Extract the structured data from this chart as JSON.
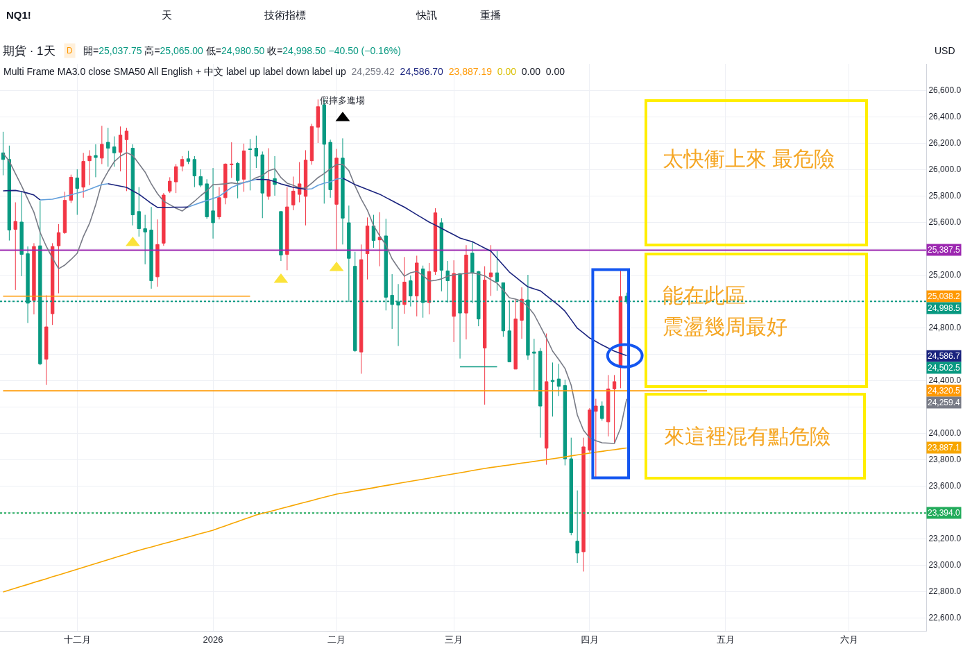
{
  "chart_data": {
    "type": "candlestick",
    "title": "期貨 · 1天",
    "categories": [
      null,
      null,
      null,
      null,
      null,
      null,
      null,
      null,
      null,
      null,
      null,
      null,
      "十二月",
      null,
      null,
      null,
      null,
      null,
      null,
      null,
      null,
      null,
      null,
      null,
      null,
      null,
      null,
      null,
      null,
      null,
      null,
      null,
      null,
      null,
      "2026",
      null,
      null,
      null,
      null,
      null,
      null,
      null,
      null,
      null,
      null,
      null,
      null,
      null,
      null,
      null,
      null,
      null,
      null,
      null,
      "二月",
      null,
      null,
      null,
      null,
      null,
      null,
      null,
      null,
      null,
      null,
      null,
      null,
      null,
      null,
      null,
      null,
      null,
      null,
      "三月",
      null,
      null,
      null,
      null,
      null,
      null,
      null,
      null,
      null,
      null,
      null,
      null,
      null,
      null,
      null,
      null,
      null,
      null,
      null,
      null,
      null,
      "四月",
      null,
      null,
      null,
      null,
      null,
      null,
      null,
      null,
      null,
      null,
      null,
      null,
      null,
      null,
      null,
      null,
      null,
      null,
      null,
      null,
      null,
      "五月",
      null,
      null,
      null,
      null,
      null,
      null,
      null,
      null,
      null,
      null,
      null,
      null,
      null,
      null,
      null,
      null,
      null,
      null,
      null,
      "六月",
      null,
      null,
      null,
      null,
      null,
      null,
      null,
      null,
      null,
      null,
      null,
      null
    ],
    "ohlc": [
      [
        26125,
        26285,
        25955,
        26075
      ],
      [
        26075,
        26180,
        25460,
        25540
      ],
      [
        25545,
        25750,
        25085,
        25605
      ],
      [
        25600,
        25830,
        25190,
        25355
      ],
      [
        25360,
        25415,
        24835,
        24985
      ],
      [
        25005,
        25440,
        24900,
        25415
      ],
      [
        25420,
        25760,
        24515,
        24525
      ],
      [
        24560,
        25045,
        24365,
        24805
      ],
      [
        24905,
        25440,
        24820,
        25415
      ],
      [
        25420,
        25585,
        25060,
        25520
      ],
      [
        25520,
        25830,
        25510,
        25765
      ],
      [
        25765,
        25960,
        25745,
        25940
      ],
      [
        25935,
        26000,
        25655,
        25855
      ],
      [
        25865,
        26125,
        25785,
        26060
      ],
      [
        26065,
        26145,
        25880,
        26100
      ],
      [
        26105,
        26190,
        25940,
        26090
      ],
      [
        26085,
        26330,
        26040,
        26190
      ],
      [
        26205,
        26315,
        26020,
        26160
      ],
      [
        26170,
        26250,
        26020,
        26125
      ],
      [
        26130,
        26325,
        25985,
        26260
      ],
      [
        26225,
        26315,
        25835,
        26290
      ],
      [
        26160,
        26190,
        25575,
        25655
      ],
      [
        25680,
        25865,
        25490,
        25550
      ],
      [
        25550,
        25655,
        25280,
        25525
      ],
      [
        25540,
        25715,
        25095,
        25155
      ],
      [
        25185,
        25620,
        25110,
        25430
      ],
      [
        25440,
        25820,
        25420,
        25805
      ],
      [
        25835,
        25940,
        25820,
        25910
      ],
      [
        25905,
        26040,
        25820,
        26020
      ],
      [
        26025,
        26100,
        25985,
        26075
      ],
      [
        26080,
        26140,
        26040,
        26060
      ],
      [
        26075,
        26100,
        25865,
        25950
      ],
      [
        25945,
        26000,
        25865,
        25880
      ],
      [
        25890,
        25925,
        25625,
        25640
      ],
      [
        25685,
        26010,
        25475,
        25595
      ],
      [
        25640,
        25865,
        25620,
        25785
      ],
      [
        25785,
        26045,
        25735,
        26040
      ],
      [
        26035,
        26205,
        25935,
        26040
      ],
      [
        26045,
        26055,
        25780,
        25915
      ],
      [
        25925,
        26195,
        25830,
        26140
      ],
      [
        26155,
        26230,
        25840,
        26150
      ],
      [
        26160,
        26255,
        26010,
        26100
      ],
      [
        26110,
        26135,
        25630,
        25820
      ],
      [
        25795,
        26160,
        25770,
        25915
      ],
      [
        25930,
        26100,
        25800,
        25885
      ],
      [
        25680,
        25680,
        25305,
        25350
      ],
      [
        25355,
        25865,
        25235,
        25715
      ],
      [
        25730,
        25945,
        25690,
        25835
      ],
      [
        25810,
        26055,
        25750,
        25890
      ],
      [
        25795,
        26145,
        25575,
        26070
      ],
      [
        26065,
        26345,
        26035,
        26325
      ],
      [
        26320,
        26530,
        26200,
        26475
      ],
      [
        26490,
        26530,
        25740,
        26190
      ],
      [
        26205,
        26225,
        25785,
        25845
      ],
      [
        25735,
        26155,
        25390,
        26085
      ],
      [
        26085,
        26235,
        25430,
        25630
      ],
      [
        25595,
        25725,
        24995,
        25325
      ],
      [
        25265,
        25375,
        24615,
        24625
      ],
      [
        24615,
        25430,
        24450,
        25315
      ],
      [
        25360,
        25635,
        25165,
        25570
      ],
      [
        25570,
        25655,
        25405,
        25460
      ],
      [
        25465,
        25675,
        25265,
        25485
      ],
      [
        25495,
        25625,
        24930,
        25030
      ],
      [
        25045,
        25205,
        24790,
        24975
      ],
      [
        24995,
        25130,
        24660,
        24970
      ],
      [
        24975,
        25335,
        24905,
        25145
      ],
      [
        25155,
        25195,
        24960,
        25040
      ],
      [
        25040,
        25345,
        24885,
        25290
      ],
      [
        25245,
        25270,
        24875,
        24990
      ],
      [
        24990,
        25290,
        24900,
        25225
      ],
      [
        25225,
        25705,
        25200,
        25670
      ],
      [
        25595,
        25630,
        25075,
        25235
      ],
      [
        25230,
        25305,
        24990,
        25155
      ],
      [
        24885,
        25310,
        24690,
        25210
      ],
      [
        25210,
        25210,
        24565,
        24910
      ],
      [
        24910,
        25425,
        24710,
        25350
      ],
      [
        25365,
        25450,
        24985,
        25215
      ],
      [
        25225,
        25230,
        24810,
        24865
      ],
      [
        24645,
        25265,
        24215,
        25160
      ],
      [
        25185,
        25425,
        25040,
        25215
      ],
      [
        25215,
        25380,
        25080,
        25150
      ],
      [
        25140,
        25140,
        24730,
        24775
      ],
      [
        24775,
        25005,
        24540,
        24540
      ],
      [
        24485,
        25015,
        24485,
        24865
      ],
      [
        24855,
        25105,
        24715,
        25015
      ],
      [
        25010,
        25200,
        24555,
        24590
      ],
      [
        24615,
        24715,
        24320,
        24605
      ],
      [
        24620,
        24645,
        23965,
        24205
      ],
      [
        23885,
        24755,
        23760,
        24390
      ],
      [
        24400,
        24535,
        24125,
        24390
      ],
      [
        24410,
        24525,
        24280,
        24355
      ],
      [
        24360,
        24405,
        23755,
        23805
      ],
      [
        23805,
        23965,
        23225,
        23245
      ],
      [
        23180,
        23565,
        23015,
        23090
      ],
      [
        23100,
        23965,
        22950,
        23895
      ],
      [
        23870,
        24190,
        23855,
        24175
      ],
      [
        24165,
        24260,
        23660,
        24205
      ],
      [
        24205,
        24240,
        24095,
        24110
      ],
      [
        24085,
        24440,
        23975,
        24335
      ],
      [
        24335,
        24440,
        23925,
        24390
      ],
      [
        24505,
        25240,
        24340,
        25035
      ],
      [
        25037.75,
        25065,
        24980.5,
        24998.5
      ],
      null,
      null,
      null,
      null,
      null,
      null,
      null,
      null,
      null,
      null,
      null,
      null,
      null,
      null,
      null,
      null,
      null,
      null,
      null,
      null,
      null,
      null,
      null,
      null,
      null,
      null,
      null,
      null,
      null,
      null,
      null,
      null,
      null,
      null,
      null,
      null,
      null,
      null,
      null,
      null,
      null,
      null,
      null,
      null,
      null,
      null,
      null,
      null
    ],
    "colors": [
      "#089981",
      "#089981",
      "#f23645",
      "#089981",
      "#089981",
      "#f23645",
      "#089981",
      "#f23645",
      "#f23645",
      "#f23645",
      "#f23645",
      "#f23645",
      "#089981",
      "#f23645",
      "#f23645",
      "#089981",
      "#f23645",
      "#089981",
      "#089981",
      "#f23645",
      "#f23645",
      "#089981",
      "#089981",
      "#089981",
      "#089981",
      "#f23645",
      "#f23645",
      "#f23645",
      "#f23645",
      "#f23645",
      "#089981",
      "#089981",
      "#089981",
      "#089981",
      "#089981",
      "#f23645",
      "#f23645",
      "#f23645",
      "#089981",
      "#f23645",
      "#089981",
      "#089981",
      "#089981",
      "#f23645",
      "#089981",
      "#089981",
      "#f23645",
      "#f23645",
      "#f23645",
      "#f23645",
      "#f23645",
      "#f23645",
      "#089981",
      "#089981",
      "#f23645",
      "#089981",
      "#089981",
      "#089981",
      "#f23645",
      "#f23645",
      "#089981",
      "#f23645",
      "#089981",
      "#089981",
      "#089981",
      "#f23645",
      "#089981",
      "#f23645",
      "#089981",
      "#f23645",
      "#f23645",
      "#089981",
      "#089981",
      "#f23645",
      "#089981",
      "#f23645",
      "#089981",
      "#089981",
      "#f23645",
      "#f23645",
      "#089981",
      "#089981",
      "#089981",
      "#f23645",
      "#f23645",
      "#089981",
      "#089981",
      "#089981",
      "#f23645",
      "#089981",
      "#089981",
      "#089981",
      "#089981",
      "#089981",
      "#f23645",
      "#f23645",
      "#f23645",
      "#089981",
      "#f23645",
      "#f23645",
      "#f23645",
      "#089981",
      null,
      null,
      null,
      null,
      null,
      null,
      null,
      null,
      null,
      null,
      null,
      null,
      null,
      null,
      null,
      null,
      null,
      null,
      null,
      null,
      null,
      null,
      null,
      null,
      null,
      null,
      null,
      null,
      null,
      null,
      null,
      null,
      null,
      null,
      null,
      null,
      null,
      null,
      null,
      null,
      null,
      null,
      null,
      null,
      null,
      null,
      null,
      null
    ],
    "series": [
      {
        "type": "line",
        "color": "#787b86",
        "values": [
          26121,
          26063,
          25968,
          25874,
          25774,
          25674,
          25521,
          25416,
          25326,
          25247,
          25274,
          25316,
          25363,
          25490,
          25590,
          25732,
          25900,
          25984,
          26058,
          26100,
          26126,
          26105,
          26042,
          25979,
          25890,
          25816,
          25758,
          25732,
          25705,
          25684,
          25721,
          25758,
          25800,
          25837,
          25884,
          25887,
          25890,
          25898,
          25890,
          25900,
          25911,
          25937,
          25953,
          25990,
          26004,
          25937,
          25895,
          25879,
          25858,
          25858,
          25895,
          25937,
          25968,
          26005,
          26037,
          26038,
          25990,
          25874,
          25774,
          25690,
          25574,
          25495,
          25426,
          25321,
          25253,
          25190,
          25216,
          25226,
          25196,
          25153,
          25158,
          25169,
          25190,
          25200,
          25205,
          25211,
          25215,
          25205,
          25192,
          25163,
          25137,
          25084,
          25026,
          25016,
          25000,
          24958,
          24900,
          24811,
          24721,
          24621,
          24558,
          24490,
          24363,
          24137,
          24021,
          23963,
          23942,
          23926,
          23924,
          23921,
          24037,
          24259.4,
          null,
          null,
          null,
          null,
          null,
          null,
          null,
          null,
          null,
          null,
          null,
          null,
          null,
          null,
          null,
          null,
          null,
          null,
          null,
          null,
          null,
          null,
          null,
          null,
          null,
          null,
          null,
          null,
          null,
          null,
          null,
          null,
          null,
          null,
          null,
          null,
          null,
          null,
          null,
          null,
          null,
          null,
          null,
          null,
          null,
          null,
          null,
          null
        ]
      },
      {
        "type": "line",
        "color": "#64a0dc",
        "values": [
          null,
          null,
          null,
          null,
          null,
          null,
          25768,
          25771,
          25774,
          25785,
          25795,
          25807,
          25820,
          25832,
          25849,
          25867,
          25884,
          25891,
          null,
          null,
          null,
          null,
          null,
          null,
          null,
          null,
          null,
          null,
          null,
          null,
          25714,
          25732,
          25748,
          25763,
          25779,
          25795,
          25829,
          25863,
          25882,
          25900,
          25912,
          25924,
          null,
          null,
          null,
          null,
          null,
          null,
          null,
          25849,
          25853,
          25879,
          25895,
          25905,
          25926,
          25933,
          null,
          null,
          null,
          null,
          null,
          null,
          null,
          null,
          null,
          null,
          null,
          null,
          null,
          null,
          null,
          null,
          null,
          null,
          null,
          null,
          null,
          null,
          null,
          null,
          null,
          null,
          null,
          null,
          null,
          null,
          null,
          null,
          null,
          null,
          null,
          null,
          null,
          null,
          null,
          null,
          null,
          null,
          null,
          null,
          null,
          null,
          null,
          null,
          null,
          null,
          null,
          null,
          null,
          null,
          null,
          null,
          null,
          null,
          null,
          null,
          null,
          null,
          null,
          null,
          null,
          null,
          null,
          null,
          null,
          null,
          null,
          null,
          null,
          null,
          null,
          null,
          null,
          null,
          null,
          null,
          null,
          null,
          null,
          null,
          null,
          null,
          null,
          null,
          null,
          null,
          null,
          null,
          null,
          null
        ]
      },
      {
        "type": "line",
        "color": "#1a237e",
        "values": [
          25837,
          25839,
          25840,
          25832,
          25819,
          25805,
          25768,
          null,
          null,
          null,
          null,
          null,
          null,
          null,
          null,
          null,
          null,
          25891,
          25882,
          25872,
          25863,
          25837,
          25811,
          25777,
          25742,
          25711,
          25712,
          25712,
          25713,
          25713,
          25714,
          null,
          null,
          null,
          null,
          null,
          null,
          null,
          null,
          null,
          null,
          25924,
          25923,
          25921,
          25906,
          25890,
          25877,
          25863,
          25856,
          25849,
          null,
          null,
          null,
          null,
          null,
          25933,
          25909,
          25884,
          25866,
          25848,
          25829,
          25811,
          25786,
          25762,
          25737,
          25713,
          25685,
          25656,
          25628,
          25600,
          25577,
          25553,
          25528,
          25504,
          25479,
          25465,
          25451,
          25427,
          25403,
          25379,
          25326,
          25274,
          25221,
          25184,
          25146,
          25109,
          25094,
          25079,
          25042,
          25005,
          24968,
          24924,
          24860,
          24795,
          24758,
          24721,
          24695,
          24668,
          24645,
          24621,
          24604,
          24586.7,
          null,
          null,
          null,
          null,
          null,
          null,
          null,
          null,
          null,
          null,
          null,
          null,
          null,
          null,
          null,
          null,
          null,
          null,
          null,
          null,
          null,
          null,
          null,
          null,
          null,
          null,
          null,
          null,
          null,
          null,
          null,
          null,
          null,
          null,
          null,
          null,
          null,
          null,
          null,
          null,
          null,
          null,
          null,
          null,
          null,
          null,
          null,
          null
        ]
      },
      {
        "type": "line",
        "color": "#f7a600",
        "values": [
          22795,
          22809,
          22824,
          22838,
          22852,
          22867,
          22881,
          22895,
          22910,
          22924,
          22938,
          22953,
          22967,
          22982,
          22996,
          23010,
          23025,
          23039,
          23054,
          23068,
          23082,
          23097,
          23111,
          23124,
          23136,
          23149,
          23162,
          23174,
          23187,
          23200,
          23212,
          23225,
          23238,
          23250,
          23263,
          23280,
          23296,
          23313,
          23329,
          23346,
          23362,
          23379,
          23391,
          23403,
          23415,
          23428,
          23440,
          23452,
          23464,
          23476,
          23488,
          23501,
          23513,
          23525,
          23537,
          23545,
          23553,
          23561,
          23569,
          23577,
          23585,
          23594,
          23602,
          23610,
          23618,
          23626,
          23634,
          23642,
          23650,
          23658,
          23667,
          23675,
          23683,
          23691,
          23699,
          23707,
          23716,
          23724,
          23732,
          23739,
          23745,
          23752,
          23758,
          23765,
          23772,
          23778,
          23785,
          23792,
          23798,
          23805,
          23812,
          23819,
          23827,
          23834,
          23841,
          23848,
          23855,
          23861,
          23868,
          23874,
          23881,
          23887.1,
          null,
          null,
          null,
          null,
          null,
          null,
          null,
          null,
          null,
          null,
          null,
          null,
          null,
          null,
          null,
          null,
          null,
          null,
          null,
          null,
          null,
          null,
          null,
          null,
          null,
          null,
          null,
          null,
          null,
          null,
          null,
          null,
          null,
          null,
          null,
          null,
          null,
          null,
          null,
          null,
          null,
          null,
          null,
          null,
          null,
          null,
          null,
          null
        ]
      },
      {
        "type": "line",
        "color": "#ff9800",
        "values": [
          25038.2,
          25038.2,
          25038.2,
          25038.2,
          25038.2,
          25038.2,
          25038.2,
          25038.2,
          25038.2,
          25038.2,
          25038.2,
          25038.2,
          25038.2,
          25038.2,
          25038.2,
          25038.2,
          25038.2,
          25038.2,
          25038.2,
          25038.2,
          25038.2,
          25038.2,
          25038.2,
          25038.2,
          25038.2,
          25038.2,
          25038.2,
          25038.2,
          25038.2,
          25038.2,
          25038.2,
          25038.2,
          25038.2,
          25038.2,
          25038.2,
          25038.2,
          25038.2,
          25038.2,
          25038.2,
          25038.2,
          25038.2,
          null,
          null,
          null,
          null,
          null,
          null,
          null,
          null,
          null,
          null,
          null,
          null,
          null,
          null,
          null,
          null,
          null,
          null,
          null,
          null,
          null,
          null,
          null,
          null,
          null,
          null,
          null,
          null,
          null,
          null,
          null,
          null,
          null,
          null,
          null,
          null,
          null,
          null,
          null,
          null,
          null,
          null,
          null,
          null,
          null,
          null,
          null,
          null,
          null,
          null,
          null,
          null,
          null,
          null,
          null,
          null,
          null,
          null,
          null,
          null,
          null,
          null,
          null,
          null,
          null,
          null,
          null,
          null,
          null,
          null,
          null,
          null,
          null,
          null,
          null,
          null,
          null,
          null,
          null,
          null,
          null,
          null,
          null,
          null,
          null,
          null,
          null,
          null,
          null,
          null,
          null,
          null,
          null,
          null,
          null,
          null,
          null,
          null,
          null,
          null,
          null,
          null,
          null,
          null,
          null,
          null,
          null,
          null,
          null
        ]
      },
      {
        "type": "line",
        "color": "#089981",
        "values": [
          null,
          null,
          null,
          null,
          null,
          null,
          null,
          null,
          null,
          null,
          null,
          null,
          null,
          null,
          null,
          null,
          null,
          null,
          null,
          null,
          null,
          null,
          null,
          null,
          null,
          null,
          null,
          null,
          null,
          null,
          null,
          null,
          null,
          null,
          null,
          null,
          null,
          null,
          null,
          null,
          null,
          null,
          null,
          null,
          null,
          null,
          null,
          null,
          null,
          null,
          null,
          null,
          null,
          null,
          null,
          null,
          null,
          null,
          null,
          null,
          null,
          null,
          null,
          null,
          null,
          null,
          null,
          null,
          null,
          null,
          null,
          null,
          null,
          null,
          24502.5,
          24502.5,
          24502.5,
          24502.5,
          24502.5,
          24502.5,
          24502.5,
          null,
          null,
          null,
          null,
          null,
          null,
          null,
          null,
          null,
          null,
          null,
          null,
          null,
          null,
          null,
          null,
          null,
          null,
          null,
          null,
          null,
          null,
          null,
          null,
          null,
          null,
          null,
          null,
          null,
          null,
          null,
          null,
          null,
          null,
          null,
          null,
          null,
          null,
          null,
          null,
          null,
          null,
          null,
          null,
          null,
          null,
          null,
          null,
          null,
          null,
          null,
          null,
          null,
          null,
          null,
          null,
          null,
          null,
          null,
          null,
          null,
          null,
          null,
          null,
          null,
          null,
          null,
          null,
          null
        ]
      },
      {
        "type": "line",
        "color": "#ff9800",
        "values": [
          24320.5,
          24320.5,
          24320.5,
          24320.5,
          24320.5,
          24320.5,
          24320.5,
          24320.5,
          24320.5,
          24320.5,
          24320.5,
          24320.5,
          24320.5,
          24320.5,
          24320.5,
          24320.5,
          24320.5,
          24320.5,
          24320.5,
          24320.5,
          24320.5,
          24320.5,
          24320.5,
          24320.5,
          24320.5,
          24320.5,
          24320.5,
          24320.5,
          24320.5,
          24320.5,
          24320.5,
          24320.5,
          24320.5,
          24320.5,
          24320.5,
          24320.5,
          24320.5,
          24320.5,
          24320.5,
          24320.5,
          24320.5,
          24320.5,
          24320.5,
          24320.5,
          24320.5,
          24320.5,
          24320.5,
          24320.5,
          24320.5,
          24320.5,
          24320.5,
          24320.5,
          24320.5,
          24320.5,
          24320.5,
          24320.5,
          24320.5,
          24320.5,
          24320.5,
          24320.5,
          24320.5,
          24320.5,
          24320.5,
          24320.5,
          24320.5,
          24320.5,
          24320.5,
          24320.5,
          24320.5,
          24320.5,
          24320.5,
          24320.5,
          24320.5,
          24320.5,
          24320.5,
          24320.5,
          24320.5,
          24320.5,
          24320.5,
          24320.5,
          24320.5,
          24320.5,
          24320.5,
          24320.5,
          24320.5,
          24320.5,
          24320.5,
          24320.5,
          24320.5,
          24320.5,
          24320.5,
          24320.5,
          24320.5,
          24320.5,
          24320.5,
          24320.5,
          24320.5,
          24320.5,
          24320.5,
          24320.5,
          24320.5,
          24320.5,
          24320.5,
          24320.5,
          24320.5,
          24320.5,
          24320.5,
          24320.5,
          24320.5,
          24320.5,
          24320.5,
          24320.5,
          24320.5,
          24320.5,
          24320.5,
          null,
          null,
          null,
          null,
          null,
          null,
          null,
          null,
          null,
          null,
          null,
          null,
          null,
          null,
          null,
          null,
          null,
          null,
          null,
          null,
          null,
          null,
          null,
          null,
          null,
          null,
          null,
          null,
          null,
          null,
          null,
          null,
          null,
          null,
          null
        ]
      },
      {
        "type": "scatter",
        "marker": "triangle",
        "color": "#fbe33a",
        "values": [
          null,
          null,
          null,
          null,
          null,
          null,
          null,
          null,
          null,
          null,
          null,
          null,
          null,
          null,
          null,
          null,
          null,
          null,
          null,
          null,
          null,
          25442,
          null,
          null,
          null,
          null,
          null,
          null,
          null,
          null,
          null,
          null,
          null,
          null,
          null,
          null,
          null,
          null,
          null,
          null,
          null,
          null,
          null,
          null,
          null,
          25163,
          null,
          null,
          null,
          null,
          null,
          null,
          null,
          null,
          25253,
          null,
          null,
          null,
          null,
          null,
          null,
          null,
          null,
          null,
          null,
          null,
          null,
          null,
          null,
          null,
          null,
          null,
          null,
          null,
          null,
          null,
          null,
          null,
          null,
          null,
          null,
          null,
          null,
          null,
          null,
          null,
          null,
          null,
          null,
          null,
          null,
          null,
          null,
          null,
          null,
          null,
          null,
          null,
          null,
          null,
          null,
          null,
          null,
          null,
          null,
          null,
          null,
          null,
          null,
          null,
          null,
          null,
          null,
          null,
          null,
          null,
          null,
          null,
          null,
          null,
          null,
          null,
          null,
          null,
          null,
          null,
          null,
          null,
          null,
          null,
          null,
          null,
          null,
          null,
          null,
          null,
          null,
          null,
          null,
          null,
          null,
          null,
          null,
          null,
          null,
          null,
          null,
          null,
          null,
          null
        ]
      },
      {
        "type": "scatter",
        "marker": "triangle",
        "color": "#000000",
        "values": [
          null,
          null,
          null,
          null,
          null,
          null,
          null,
          null,
          null,
          null,
          null,
          null,
          null,
          null,
          null,
          null,
          null,
          null,
          null,
          null,
          null,
          null,
          null,
          null,
          null,
          null,
          null,
          null,
          null,
          null,
          null,
          null,
          null,
          null,
          null,
          null,
          null,
          null,
          null,
          null,
          null,
          null,
          null,
          null,
          null,
          null,
          null,
          null,
          null,
          null,
          null,
          null,
          null,
          null,
          null,
          26389,
          null,
          null,
          null,
          null,
          null,
          null,
          null,
          null,
          null,
          null,
          null,
          null,
          null,
          null,
          null,
          null,
          null,
          null,
          null,
          null,
          null,
          null,
          null,
          null,
          null,
          null,
          null,
          null,
          null,
          null,
          null,
          null,
          null,
          null,
          null,
          null,
          null,
          null,
          null,
          null,
          null,
          null,
          null,
          null,
          null,
          null,
          null,
          null,
          null,
          null,
          null,
          null,
          null,
          null,
          null,
          null,
          null,
          null,
          null,
          null,
          null,
          null,
          null,
          null,
          null,
          null,
          null,
          null,
          null,
          null,
          null,
          null,
          null,
          null,
          null,
          null,
          null,
          null,
          null,
          null,
          null,
          null,
          null,
          null,
          null,
          null,
          null,
          null,
          null,
          null,
          null,
          null,
          null,
          null
        ]
      }
    ],
    "ref_lines": [
      {
        "axis": "y",
        "value": 25387.5,
        "label": "25,387.5",
        "color": "#9c27b0"
      },
      {
        "axis": "y",
        "value": 24998.5,
        "label": "24,998.5",
        "color": "#089981",
        "line_style": "dotted"
      },
      {
        "axis": "y",
        "value": 23394.0,
        "label": "23,394.0",
        "color": "#22ab5b",
        "line_style": "dotted"
      }
    ],
    "ylim": [
      22500,
      26800
    ],
    "yticks": [
      {
        "value": 22600,
        "label": "22,600.0"
      },
      {
        "value": 22800,
        "label": "22,800.0"
      },
      {
        "value": 23000,
        "label": "23,000.0"
      },
      {
        "value": 23200,
        "label": "23,200.0"
      },
      {
        "value": 23400,
        "label": null
      },
      {
        "value": 23600,
        "label": "23,600.0"
      },
      {
        "value": 23800,
        "label": "23,800.0"
      },
      {
        "value": 24000,
        "label": "24,000.0"
      },
      {
        "value": 24200,
        "label": null
      },
      {
        "value": 24400,
        "label": "24,400.0"
      },
      {
        "value": 24600,
        "label": null
      },
      {
        "value": 24800,
        "label": "24,800.0"
      },
      {
        "value": 25000,
        "label": null
      },
      {
        "value": 25200,
        "label": "25,200.0"
      },
      {
        "value": 25400,
        "label": null
      },
      {
        "value": 25600,
        "label": "25,600.0"
      },
      {
        "value": 25800,
        "label": "25,800.0"
      },
      {
        "value": 26000,
        "label": "26,000.0"
      },
      {
        "value": 26200,
        "label": "26,200.0"
      },
      {
        "value": 26400,
        "label": "26,400.0"
      },
      {
        "value": 26600,
        "label": "26,600.0"
      }
    ],
    "grid": true,
    "annotations": [
      "NQ1!",
      "天",
      "技術指標",
      "快訊",
      "重播",
      "D",
      "開=25,037.75 高=25,065.00 低=24,980.50 收=24,998.50 −40.50 (−0.16%)",
      "Multi Frame MA3.0 close SMA50 All English + 中文 label up label down label up",
      "24,259.42",
      "24,586.70",
      "23,887.19",
      "0.00",
      "0.00",
      "0.00",
      "太快衝上來 最危險",
      "能在此區",
      "震盪幾周最好",
      "來這裡混有點危險",
      "USD",
      "假摔多進場",
      "25,038.2",
      "24,586.7",
      "24,502.5",
      "24,320.5",
      "24,259.4",
      "23,887.1"
    ]
  }
}
